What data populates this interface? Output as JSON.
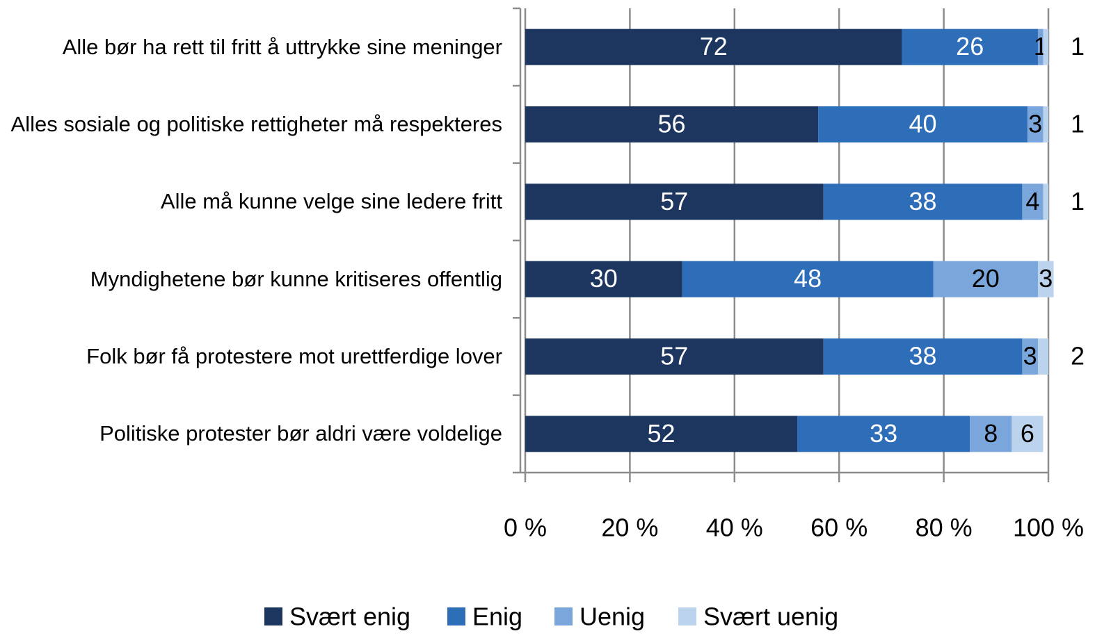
{
  "chart_data": {
    "type": "stacked_bar_horizontal",
    "categories": [
      "Alle bør ha rett til fritt å uttrykke sine meninger",
      "Alles sosiale og politiske rettigheter må respekteres",
      "Alle må kunne velge sine ledere fritt",
      "Myndighetene bør kunne kritiseres offentlig",
      "Folk bør få protestere mot urettferdige lover",
      "Politiske protester bør aldri være voldelige"
    ],
    "series": [
      {
        "name": "Svært enig",
        "color": "#1c3660",
        "values": [
          72,
          56,
          57,
          30,
          57,
          52
        ]
      },
      {
        "name": "Enig",
        "color": "#2e6db8",
        "values": [
          26,
          40,
          38,
          48,
          38,
          33
        ]
      },
      {
        "name": "Uenig",
        "color": "#7aa6dc",
        "values": [
          1,
          3,
          4,
          20,
          3,
          8
        ]
      },
      {
        "name": "Svært uenig",
        "color": "#bcd3ee",
        "values": [
          1,
          1,
          1,
          3,
          2,
          6
        ]
      }
    ],
    "xlim": [
      0,
      100
    ],
    "xticks": [
      {
        "value": 0,
        "label": "0 %"
      },
      {
        "value": 20,
        "label": "20 %"
      },
      {
        "value": 40,
        "label": "40 %"
      },
      {
        "value": 60,
        "label": "60 %"
      },
      {
        "value": 80,
        "label": "80 %"
      },
      {
        "value": 100,
        "label": "100 %"
      }
    ],
    "grid": true,
    "legend": "bottom"
  }
}
